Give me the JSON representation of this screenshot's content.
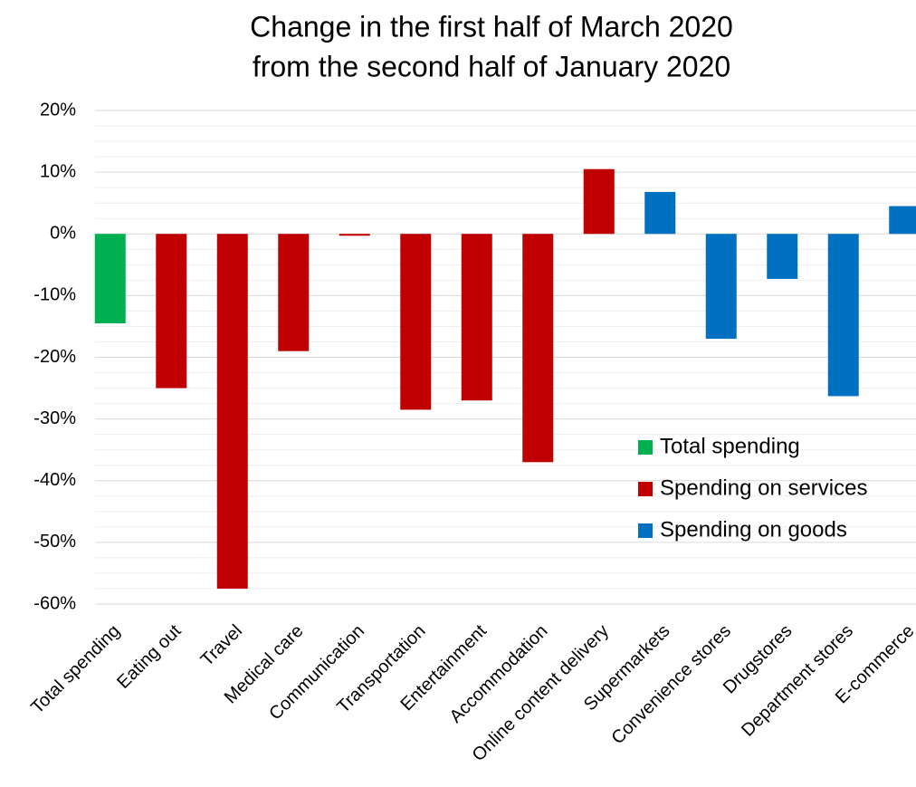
{
  "chart_data": {
    "type": "bar",
    "title": [
      "Change in the first half of March 2020",
      "from the second half of January 2020"
    ],
    "categories": [
      "Total spending",
      "Eating out",
      "Travel",
      "Medical care",
      "Communication",
      "Transportation",
      "Entertainment",
      "Accommodation",
      "Online content delivery",
      "Supermarkets",
      "Convenience stores",
      "Drugstores",
      "Department stores",
      "E-commerce"
    ],
    "series": [
      {
        "name": "Total spending",
        "color": "#00b050",
        "values": [
          -14.5,
          null,
          null,
          null,
          null,
          null,
          null,
          null,
          null,
          null,
          null,
          null,
          null,
          null
        ]
      },
      {
        "name": "Spending on services",
        "color": "#c00000",
        "values": [
          null,
          -25,
          -57.5,
          -19,
          -0.3,
          -28.5,
          -27,
          -37,
          10.5,
          null,
          null,
          null,
          null,
          null
        ]
      },
      {
        "name": "Spending on goods",
        "color": "#0070c0",
        "values": [
          null,
          null,
          null,
          null,
          null,
          null,
          null,
          null,
          null,
          6.8,
          -17,
          -7.3,
          -26.3,
          4.5
        ]
      }
    ],
    "ylim": [
      -60,
      20
    ],
    "yticks": [
      {
        "value": 20,
        "label": "20%"
      },
      {
        "value": 10,
        "label": "10%"
      },
      {
        "value": 0,
        "label": "0%"
      },
      {
        "value": -10,
        "label": "-10%"
      },
      {
        "value": -20,
        "label": "-20%"
      },
      {
        "value": -30,
        "label": "-30%"
      },
      {
        "value": -40,
        "label": "-40%"
      },
      {
        "value": -50,
        "label": "-50%"
      },
      {
        "value": -60,
        "label": "-60%"
      }
    ],
    "minor_yticks": [
      17.5,
      15,
      12.5,
      7.5,
      5,
      2.5,
      -2.5,
      -5,
      -7.5,
      -12.5,
      -15,
      -17.5,
      -22.5,
      -25,
      -27.5,
      -32.5,
      -35,
      -37.5,
      -42.5,
      -45,
      -47.5,
      -52.5,
      -55,
      -57.5
    ],
    "grid": true,
    "legend": "right"
  }
}
